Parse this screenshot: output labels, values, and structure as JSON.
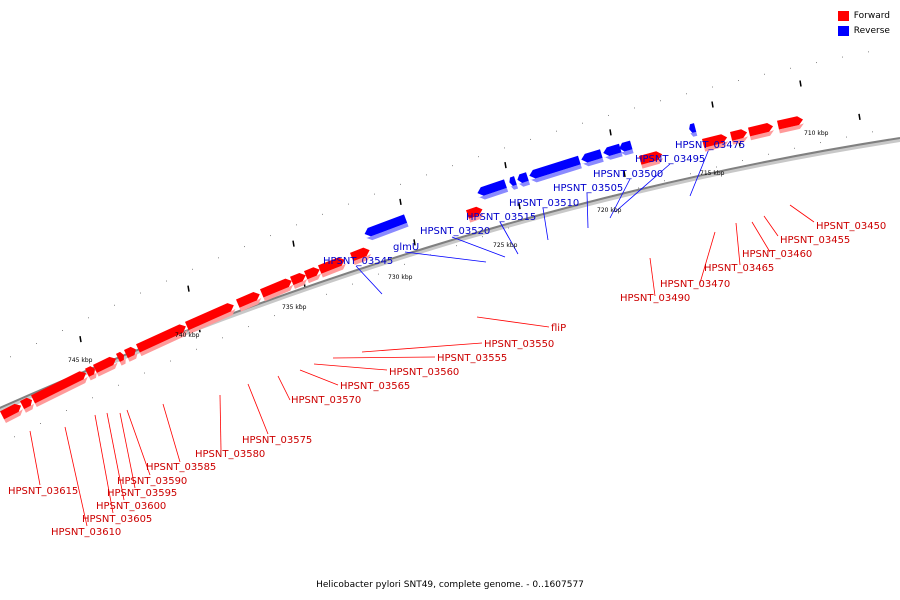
{
  "caption": "Helicobacter pylori SNT49, complete genome. - 0..1607577",
  "legend": [
    {
      "label": "Forward",
      "color": "#ff0000"
    },
    {
      "label": "Reverse",
      "color": "#0000ff"
    }
  ],
  "colors": {
    "forward": "#ff0000",
    "forward_shadow": "#ff9a9a",
    "reverse": "#0000ff",
    "reverse_shadow": "#8a8aff",
    "backbone": "#808080"
  },
  "kbp_labels": [
    "710 kbp",
    "715 kbp",
    "720 kbp",
    "725 kbp",
    "730 kbp",
    "735 kbp",
    "740 kbp",
    "745 kbp"
  ],
  "reverse_genes": [
    "HPSNT_03475",
    "HPSNT_03495",
    "HPSNT_03500",
    "HPSNT_03505",
    "HPSNT_03510",
    "HPSNT_03515",
    "HPSNT_03520",
    "glmU",
    "HPSNT_03545"
  ],
  "forward_genes": [
    "HPSNT_03450",
    "HPSNT_03455",
    "HPSNT_03460",
    "HPSNT_03465",
    "HPSNT_03470",
    "HPSNT_03490",
    "fliP",
    "HPSNT_03550",
    "HPSNT_03555",
    "HPSNT_03560",
    "HPSNT_03565",
    "HPSNT_03570",
    "HPSNT_03575",
    "HPSNT_03580",
    "HPSNT_03585",
    "HPSNT_03590",
    "HPSNT_03595",
    "HPSNT_03600",
    "HPSNT_03605",
    "HPSNT_03610",
    "HPSNT_03615"
  ]
}
